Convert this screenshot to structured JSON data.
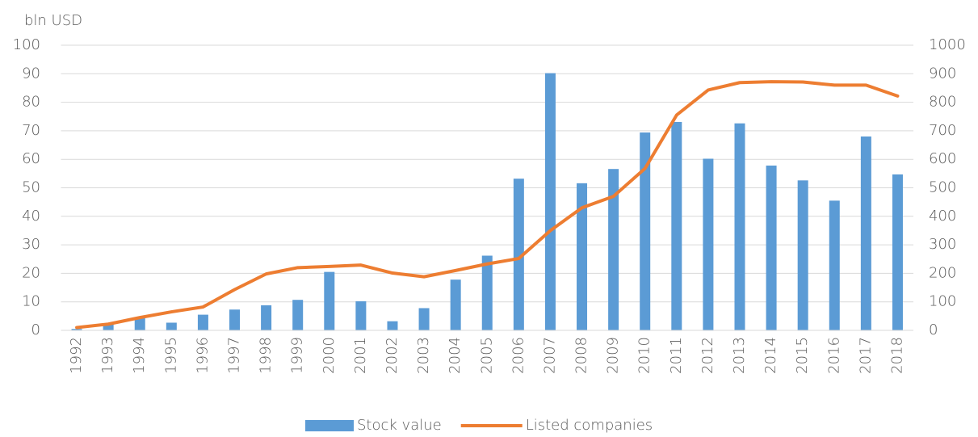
{
  "chart_data": {
    "type": "bar",
    "ylabel": "bln USD",
    "categories": [
      "1992",
      "1993",
      "1994",
      "1995",
      "1996",
      "1997",
      "1998",
      "1999",
      "2000",
      "2001",
      "2002",
      "2003",
      "2004",
      "2005",
      "2006",
      "2007",
      "2008",
      "2009",
      "2010",
      "2011",
      "2012",
      "2013",
      "2014",
      "2015",
      "2016",
      "2017",
      "2018"
    ],
    "series": [
      {
        "name": "Stock value",
        "type": "bar",
        "color": "#5b9bd5",
        "values": [
          0.5,
          2,
          4.5,
          2.7,
          5.5,
          7.3,
          8.8,
          10.7,
          20.5,
          10.2,
          3.2,
          7.8,
          17.8,
          26.2,
          53.2,
          90.2,
          51.6,
          56.6,
          69.4,
          73.1,
          60.2,
          72.6,
          57.8,
          52.6,
          45.5,
          68,
          54.7
        ]
      },
      {
        "name": "Listed companies",
        "type": "line",
        "axis": "y2",
        "color": "#ed7d31",
        "values": [
          10,
          22,
          45,
          65,
          82,
          143,
          198,
          220,
          224,
          229,
          201,
          188,
          210,
          233,
          252,
          350,
          430,
          470,
          568,
          755,
          843,
          869,
          872,
          871,
          860,
          860,
          822
        ]
      }
    ],
    "ylim": [
      0,
      100
    ],
    "yticks": [
      0,
      10,
      20,
      30,
      40,
      50,
      60,
      70,
      80,
      90,
      100
    ],
    "y2lim": [
      0,
      1000
    ],
    "y2ticks": [
      0,
      100,
      200,
      300,
      400,
      500,
      600,
      700,
      800,
      900,
      1000
    ],
    "grid": true,
    "legend": "bottom"
  }
}
